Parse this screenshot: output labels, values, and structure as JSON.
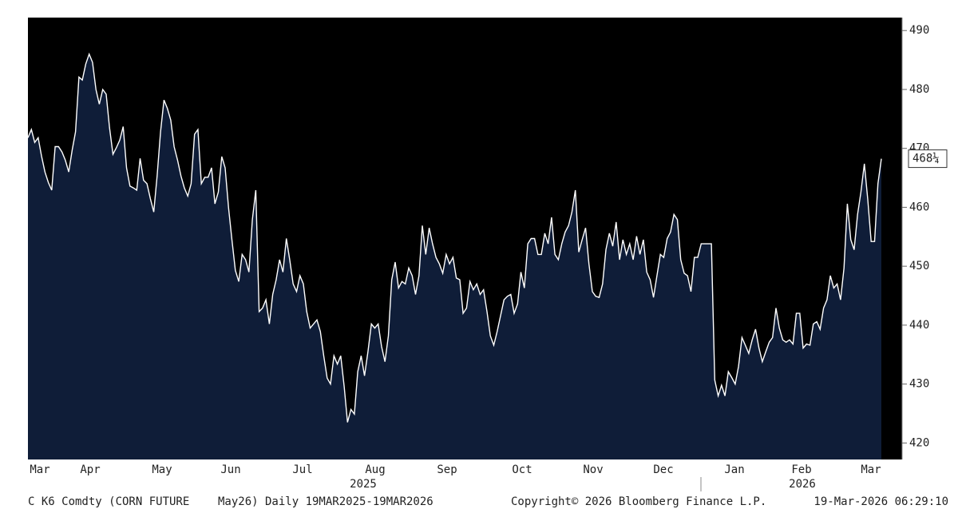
{
  "chart_data": {
    "type": "area",
    "values": [
      471.8,
      473.2,
      471,
      471.8,
      468.7,
      466,
      464.2,
      462.9,
      470.3,
      470.3,
      469.4,
      468,
      466,
      469.7,
      472.8,
      482.1,
      481.6,
      484.3,
      486,
      484.6,
      480,
      477.5,
      480,
      479.2,
      473.5,
      469,
      470.1,
      471.4,
      473.7,
      466.7,
      463.6,
      463.3,
      462.9,
      468.3,
      464.6,
      464,
      461.5,
      459.2,
      465.3,
      472.8,
      478.2,
      476.8,
      474.8,
      470.3,
      468,
      465.3,
      463.3,
      461.9,
      464,
      472.4,
      473.2,
      464,
      465.1,
      465.1,
      466.7,
      460.6,
      462.6,
      468.6,
      466.7,
      459.9,
      454.5,
      449.3,
      447.4,
      452,
      451.1,
      449,
      457.9,
      462.9,
      442.3,
      442.9,
      444.3,
      440.2,
      445.2,
      447.7,
      451.1,
      449,
      454.7,
      451.1,
      447,
      445.7,
      448.4,
      447,
      442.3,
      439.5,
      440.2,
      440.9,
      438.9,
      434.8,
      431,
      430,
      434.8,
      433.4,
      434.8,
      429.6,
      423.5,
      425.7,
      424.9,
      432.1,
      434.8,
      431.4,
      435.5,
      440.2,
      439.5,
      440.2,
      436.4,
      433.8,
      438.2,
      447.7,
      450.7,
      446.3,
      447.4,
      447,
      449.7,
      448.4,
      445.2,
      448.4,
      456.9,
      452,
      456.5,
      453.8,
      451.5,
      450.4,
      448.8,
      452,
      450.4,
      451.5,
      448,
      447.7,
      442,
      442.9,
      447.4,
      446,
      447,
      445.2,
      446,
      442.3,
      438.2,
      436.6,
      438.9,
      441.6,
      444.3,
      444.9,
      445.2,
      442,
      443.6,
      449,
      446.3,
      453.8,
      454.7,
      454.7,
      452,
      452,
      455.6,
      453.8,
      458.3,
      452,
      451.1,
      453.8,
      455.8,
      456.9,
      459.2,
      462.9,
      452.4,
      454.5,
      456.5,
      450.4,
      445.7,
      444.9,
      444.7,
      447,
      452.8,
      455.6,
      453.4,
      457.5,
      451.1,
      454.5,
      452,
      453.8,
      451.1,
      455.1,
      452,
      454.5,
      449,
      447.7,
      444.7,
      448.4,
      452,
      451.5,
      454.7,
      455.8,
      458.8,
      457.9,
      451.1,
      448.8,
      448.4,
      445.7,
      451.5,
      451.5,
      453.8,
      453.8,
      453.8,
      453.8,
      430.7,
      428,
      429.8,
      428,
      432.1,
      431.1,
      430,
      433,
      437.9,
      436.6,
      435.2,
      437.5,
      439.3,
      436.1,
      433.8,
      435.5,
      437.1,
      437.9,
      442.9,
      439.5,
      437.5,
      437.1,
      437.5,
      436.8,
      442,
      442,
      436.1,
      436.8,
      436.6,
      440.2,
      440.6,
      439.3,
      442.9,
      444.3,
      448.4,
      446.3,
      447,
      444.3,
      449.7,
      460.6,
      454.5,
      452.8,
      458.8,
      462.6,
      467.4,
      461.3,
      454.2,
      454.2,
      464,
      468.25
    ],
    "last_value_label": "468¼",
    "color": "#ffffff",
    "fill": "#0f1d38",
    "ylim": [
      417.2,
      492.2
    ],
    "yticks": [
      420,
      430,
      440,
      450,
      460,
      470,
      480,
      490
    ],
    "grid": false,
    "months": [
      "Mar",
      "Apr",
      "May",
      "Jun",
      "Jul",
      "Aug",
      "Sep",
      "Oct",
      "Nov",
      "Dec",
      "Jan",
      "Feb",
      "Mar"
    ],
    "years": [
      "2025",
      "2026"
    ],
    "footer": [
      "C K6 Comdty (CORN FUTURE",
      "May26) Daily 19MAR2025-19MAR2026",
      "Copyright© 2026 Bloomberg Finance L.P.",
      "19-Mar-2026 06:29:10"
    ]
  }
}
